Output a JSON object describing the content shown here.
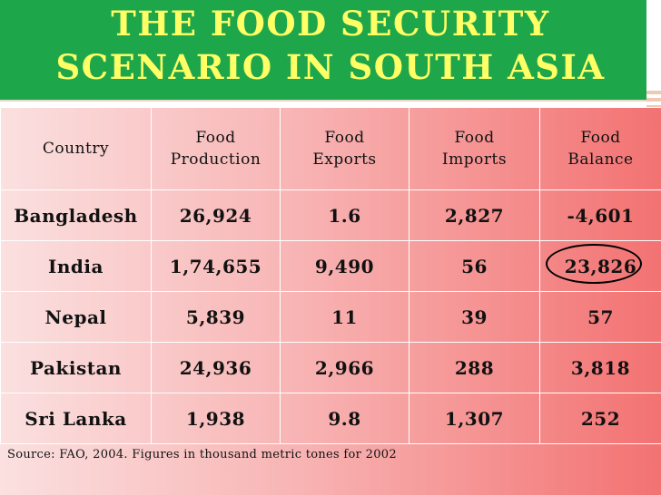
{
  "title": {
    "line1": "THE FOOD SECURITY",
    "line2": "SCENARIO IN SOUTH ASIA"
  },
  "table": {
    "headers": [
      [
        "Country"
      ],
      [
        "Food",
        "Production"
      ],
      [
        "Food",
        "Exports"
      ],
      [
        "Food",
        "Imports"
      ],
      [
        "Food",
        "Balance"
      ]
    ],
    "rows": [
      {
        "country": "Bangladesh",
        "production": "26,924",
        "exports": "1.6",
        "imports": "2,827",
        "balance": "-4,601",
        "balance_circled": false
      },
      {
        "country": "India",
        "production": "1,74,655",
        "exports": "9,490",
        "imports": "56",
        "balance": "23,826",
        "balance_circled": true
      },
      {
        "country": "Nepal",
        "production": "5,839",
        "exports": "11",
        "imports": "39",
        "balance": "57",
        "balance_circled": false
      },
      {
        "country": "Pakistan",
        "production": "24,936",
        "exports": "2,966",
        "imports": "288",
        "balance": "3,818",
        "balance_circled": false
      },
      {
        "country": "Sri Lanka",
        "production": "1,938",
        "exports": "9.8",
        "imports": "1,307",
        "balance": "252",
        "balance_circled": false
      }
    ]
  },
  "source": "Source: FAO, 2004. Figures in thousand metric tones for 2002",
  "colors": {
    "header_bg": "#1ea64a",
    "title_text": "#ffff66",
    "table_gradient_start": "#fbe0e0",
    "table_gradient_end": "#f37272"
  }
}
